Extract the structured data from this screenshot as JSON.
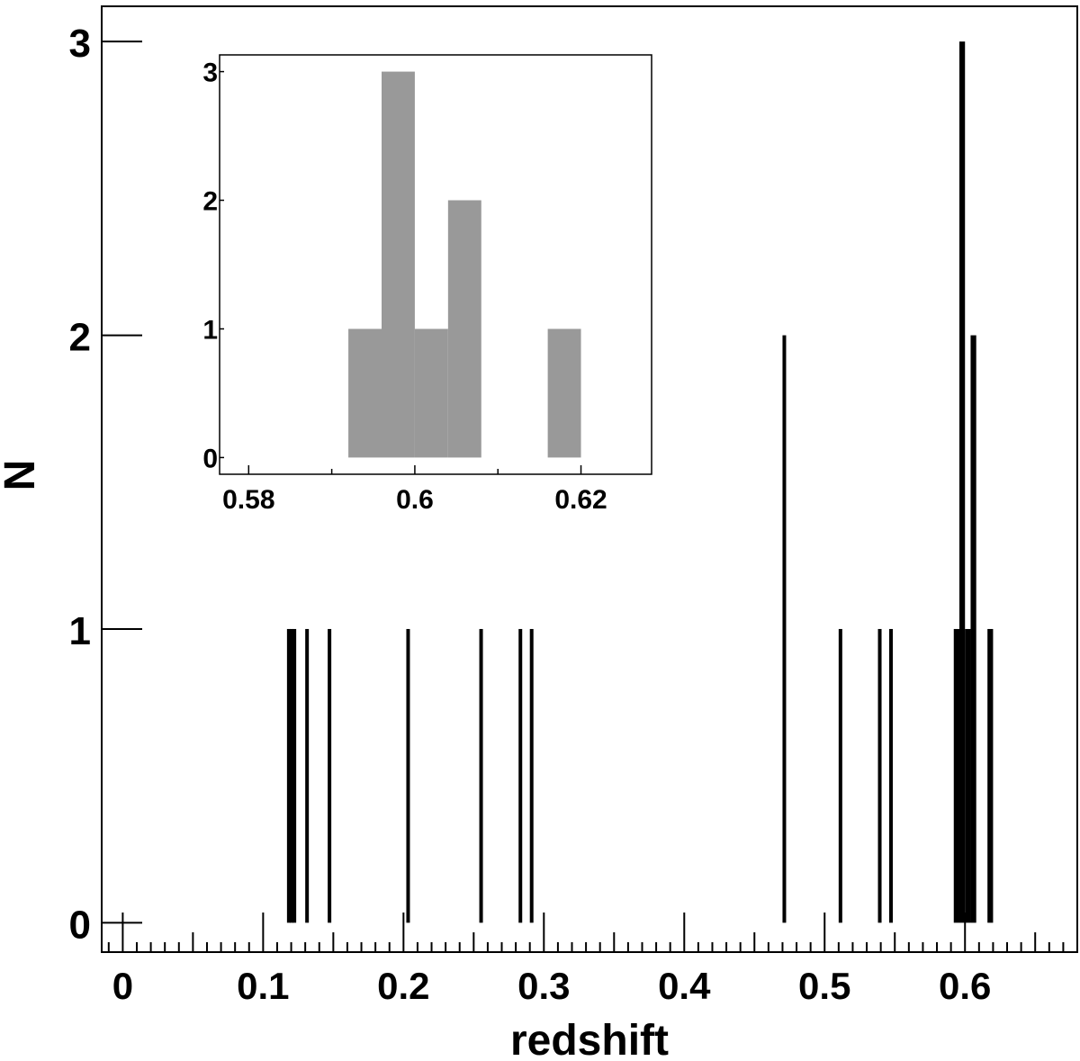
{
  "chart_data": [
    {
      "type": "bar",
      "role": "main",
      "xlabel": "redshift",
      "ylabel": "N",
      "xlim": [
        -0.015,
        0.68
      ],
      "ylim": [
        -0.1,
        3.12
      ],
      "x_ticks": [
        "0",
        "0.1",
        "0.2",
        "0.3",
        "0.4",
        "0.5",
        "0.6"
      ],
      "x_tick_values": [
        0,
        0.1,
        0.2,
        0.3,
        0.4,
        0.5,
        0.6
      ],
      "y_ticks": [
        "0",
        "1",
        "2",
        "3"
      ],
      "y_tick_values": [
        0,
        1,
        2,
        3
      ],
      "bar_color": "#000000",
      "bins": [
        {
          "x": 0.117,
          "width": 0.002,
          "value": 1
        },
        {
          "x": 0.119,
          "width": 0.002,
          "value": 1
        },
        {
          "x": 0.121,
          "width": 0.002,
          "value": 1
        },
        {
          "x": 0.13,
          "width": 0.002,
          "value": 1
        },
        {
          "x": 0.146,
          "width": 0.002,
          "value": 1
        },
        {
          "x": 0.202,
          "width": 0.002,
          "value": 1
        },
        {
          "x": 0.254,
          "width": 0.002,
          "value": 1
        },
        {
          "x": 0.282,
          "width": 0.002,
          "value": 1
        },
        {
          "x": 0.29,
          "width": 0.002,
          "value": 1
        },
        {
          "x": 0.47,
          "width": 0.002,
          "value": 2
        },
        {
          "x": 0.51,
          "width": 0.002,
          "value": 1
        },
        {
          "x": 0.538,
          "width": 0.002,
          "value": 1
        },
        {
          "x": 0.546,
          "width": 0.002,
          "value": 1
        },
        {
          "x": 0.592,
          "width": 0.004,
          "value": 1
        },
        {
          "x": 0.596,
          "width": 0.004,
          "value": 3
        },
        {
          "x": 0.6,
          "width": 0.004,
          "value": 1
        },
        {
          "x": 0.604,
          "width": 0.004,
          "value": 2
        },
        {
          "x": 0.616,
          "width": 0.004,
          "value": 1
        }
      ]
    },
    {
      "type": "bar",
      "role": "inset",
      "xlim": [
        0.5765,
        0.6285
      ],
      "ylim": [
        -0.13,
        3.13
      ],
      "x_ticks": [
        "0.58",
        "0.6",
        "0.62"
      ],
      "x_tick_values": [
        0.58,
        0.6,
        0.62
      ],
      "y_ticks": [
        "0",
        "1",
        "2",
        "3"
      ],
      "y_tick_values": [
        0,
        1,
        2,
        3
      ],
      "bar_color": "#999999",
      "bins": [
        {
          "x": 0.592,
          "width": 0.004,
          "value": 1
        },
        {
          "x": 0.596,
          "width": 0.004,
          "value": 3
        },
        {
          "x": 0.6,
          "width": 0.004,
          "value": 1
        },
        {
          "x": 0.604,
          "width": 0.004,
          "value": 2
        },
        {
          "x": 0.616,
          "width": 0.004,
          "value": 1
        }
      ]
    }
  ]
}
